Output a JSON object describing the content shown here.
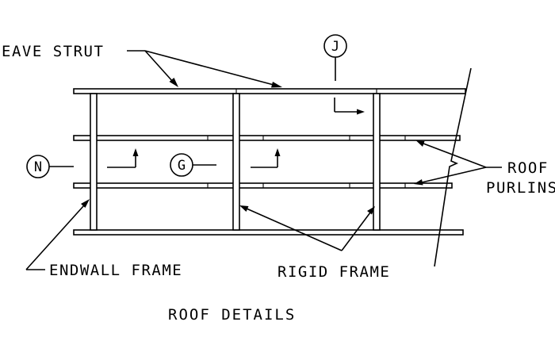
{
  "labels": {
    "eave_strut": "EAVE STRUT",
    "roof_purlins_line1": "ROOF",
    "roof_purlins_line2": "PURLINS",
    "endwall_frame": "ENDWALL FRAME",
    "rigid_frame": "RIGID FRAME"
  },
  "section_markers": {
    "j": "J",
    "n": "N",
    "g": "G"
  },
  "title": "ROOF DETAILS"
}
